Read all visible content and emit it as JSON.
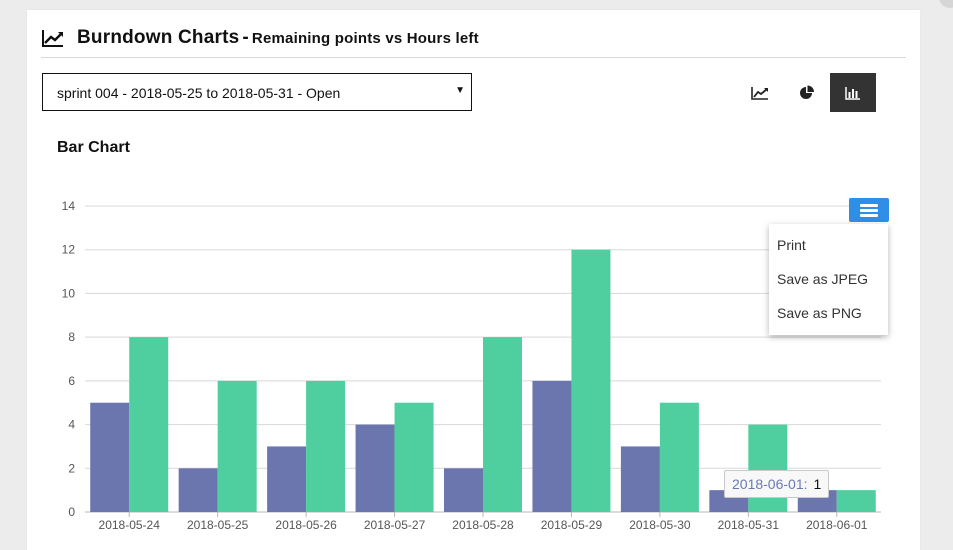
{
  "header": {
    "title": "Burndown Charts",
    "separator": "-",
    "subtitle": "Remaining points vs Hours left"
  },
  "sprint_select": {
    "value": "sprint 004 - 2018-05-25 to 2018-05-31 - Open"
  },
  "view_buttons": [
    {
      "name": "line-chart-view",
      "icon": "line-chart-icon",
      "active": false
    },
    {
      "name": "pie-chart-view",
      "icon": "pie-chart-icon",
      "active": false
    },
    {
      "name": "bar-chart-view",
      "icon": "bar-chart-icon",
      "active": true
    }
  ],
  "chart_title": "Bar Chart",
  "export_menu": {
    "items": [
      "Print",
      "Save as JPEG",
      "Save as PNG"
    ]
  },
  "tooltip": {
    "label": "2018-06-01:",
    "value": "1"
  },
  "colors": {
    "series_a": "#6b76ae",
    "series_b": "#4fcf9f",
    "active_button": "#333333",
    "menu_button": "#2f8fe6"
  },
  "chart_data": {
    "type": "bar",
    "title": "Bar Chart",
    "categories": [
      "2018-05-24",
      "2018-05-25",
      "2018-05-26",
      "2018-05-27",
      "2018-05-28",
      "2018-05-29",
      "2018-05-30",
      "2018-05-31",
      "2018-06-01"
    ],
    "series": [
      {
        "values": [
          5,
          2,
          3,
          4,
          2,
          6,
          3,
          1,
          1
        ],
        "color": "#6b76ae"
      },
      {
        "values": [
          8,
          6,
          6,
          5,
          8,
          12,
          5,
          4,
          1
        ],
        "color": "#4fcf9f"
      }
    ],
    "yticks": [
      0,
      2,
      4,
      6,
      8,
      10,
      12,
      14
    ],
    "ylim": [
      0,
      14
    ],
    "grid": true,
    "legend": "none"
  }
}
